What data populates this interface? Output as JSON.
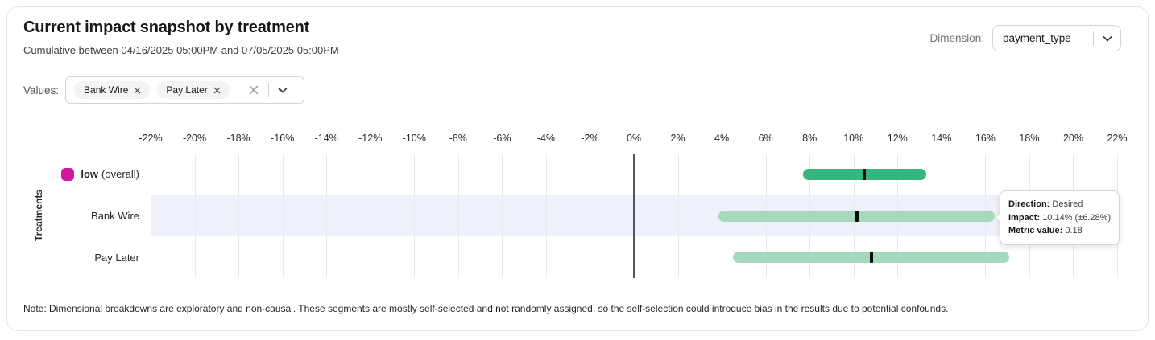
{
  "header": {
    "title": "Current impact snapshot by treatment",
    "subtitle": "Cumulative between 04/16/2025 05:00PM and 07/05/2025 05:00PM",
    "dimension_label": "Dimension:",
    "dimension_value": "payment_type"
  },
  "filters": {
    "label": "Values:",
    "chips": [
      {
        "label": "Bank Wire"
      },
      {
        "label": "Pay Later"
      }
    ]
  },
  "chart_data": {
    "type": "bar",
    "subtype": "horizontal-confidence-interval",
    "ylabel": "Treatments",
    "x_unit": "%",
    "xlim": [
      -22,
      22
    ],
    "x_ticks": [
      -22,
      -20,
      -18,
      -16,
      -14,
      -12,
      -10,
      -8,
      -6,
      -4,
      -2,
      0,
      2,
      4,
      6,
      8,
      10,
      12,
      14,
      16,
      18,
      20,
      22
    ],
    "grid": true,
    "zero_line": true,
    "highlight_color": "#eef0fb",
    "marker_color": "#0b0b0e",
    "rows": [
      {
        "label": "low",
        "label_suffix": "(overall)",
        "swatch_color": "#d2189c",
        "bar_color": "#34b67e",
        "ci_low": 7.7,
        "ci_high": 13.3,
        "impact": 10.5,
        "highlighted": false
      },
      {
        "label": "Bank Wire",
        "bar_color": "#a6d9bb",
        "ci_low": 3.86,
        "ci_high": 16.42,
        "impact": 10.14,
        "highlighted": true
      },
      {
        "label": "Pay Later",
        "bar_color": "#a6d9bb",
        "ci_low": 4.5,
        "ci_high": 17.1,
        "impact": 10.8,
        "highlighted": false
      }
    ]
  },
  "tooltip": {
    "direction_label": "Direction:",
    "direction_value": "Desired",
    "impact_label": "Impact:",
    "impact_value": "10.14% (±6.28%)",
    "metric_label": "Metric value:",
    "metric_value": "0.18"
  },
  "note": "Note: Dimensional breakdowns are exploratory and non-causal. These segments are mostly self-selected and not randomly assigned, so the self-selection could introduce bias in the results due to potential confounds."
}
